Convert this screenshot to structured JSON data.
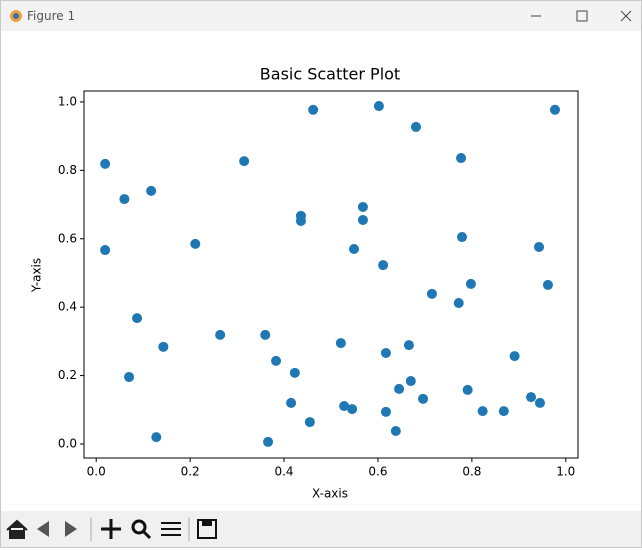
{
  "window": {
    "title": "Figure 1"
  },
  "chart_data": {
    "type": "scatter",
    "title": "Basic Scatter Plot",
    "x_label": "X-axis",
    "y_label": "Y-axis",
    "color": "#1f77b4",
    "x": [
      0.019,
      0.019,
      0.06,
      0.117,
      0.087,
      0.07,
      0.143,
      0.128,
      0.211,
      0.315,
      0.264,
      0.36,
      0.366,
      0.383,
      0.423,
      0.415,
      0.436,
      0.436,
      0.462,
      0.455,
      0.521,
      0.528,
      0.545,
      0.549,
      0.568,
      0.568,
      0.602,
      0.611,
      0.617,
      0.617,
      0.638,
      0.645,
      0.666,
      0.67,
      0.681,
      0.696,
      0.715,
      0.777,
      0.779,
      0.772,
      0.798,
      0.791,
      0.823,
      0.868,
      0.891,
      0.926,
      0.943,
      0.945,
      0.962,
      0.977
    ],
    "y": [
      0.819,
      0.567,
      0.716,
      0.74,
      0.368,
      0.196,
      0.284,
      0.02,
      0.585,
      0.827,
      0.319,
      0.319,
      0.006,
      0.243,
      0.208,
      0.12,
      0.667,
      0.652,
      0.977,
      0.064,
      0.295,
      0.111,
      0.102,
      0.57,
      0.693,
      0.655,
      0.988,
      0.523,
      0.266,
      0.094,
      0.038,
      0.161,
      0.289,
      0.184,
      0.927,
      0.132,
      0.439,
      0.836,
      0.605,
      0.412,
      0.468,
      0.158,
      0.096,
      0.096,
      0.257,
      0.137,
      0.576,
      0.12,
      0.465,
      0.977
    ],
    "xlim": [
      -0.026,
      1.026
    ],
    "ylim": [
      -0.041,
      1.032
    ],
    "xticks": [
      {
        "value": 0,
        "label": "0.0"
      },
      0.2,
      0.4,
      0.6,
      0.8,
      {
        "value": 1,
        "label": "1.0"
      }
    ],
    "yticks": [
      {
        "value": 0,
        "label": "0.0"
      },
      0.2,
      0.4,
      0.6,
      0.8,
      {
        "value": 1,
        "label": "1.0"
      }
    ]
  }
}
